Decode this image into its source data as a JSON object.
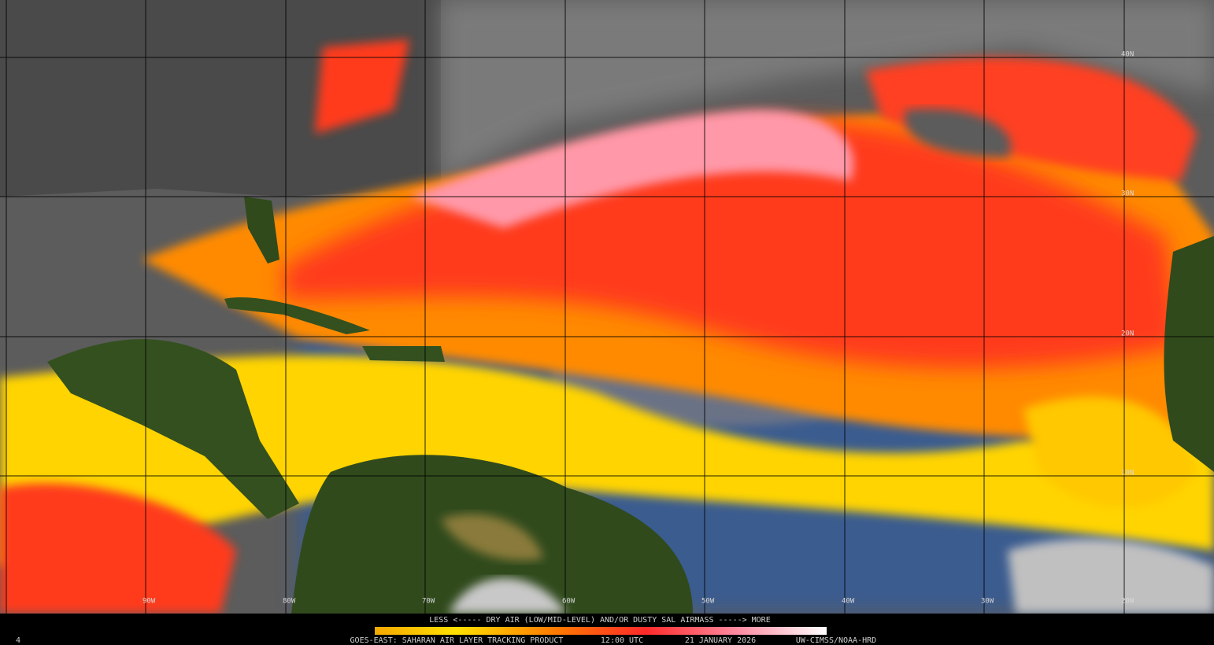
{
  "map": {
    "latitude_labels": [
      "40N",
      "30N",
      "20N",
      "10N"
    ],
    "longitude_labels": [
      "90W",
      "80W",
      "70W",
      "60W",
      "50W",
      "40W",
      "30W",
      "20W"
    ],
    "legend": "LESS <----- DRY AIR (LOW/MID-LEVEL) AND/OR DUSTY SAL AIRMASS -----> MORE",
    "footer": {
      "frame": "4",
      "product": "GOES-EAST: SAHARAN AIR LAYER TRACKING PRODUCT",
      "time": "12:00 UTC",
      "date": "21 JANUARY 2026",
      "credit": "UW-CIMSS/NOAA-HRD"
    }
  }
}
